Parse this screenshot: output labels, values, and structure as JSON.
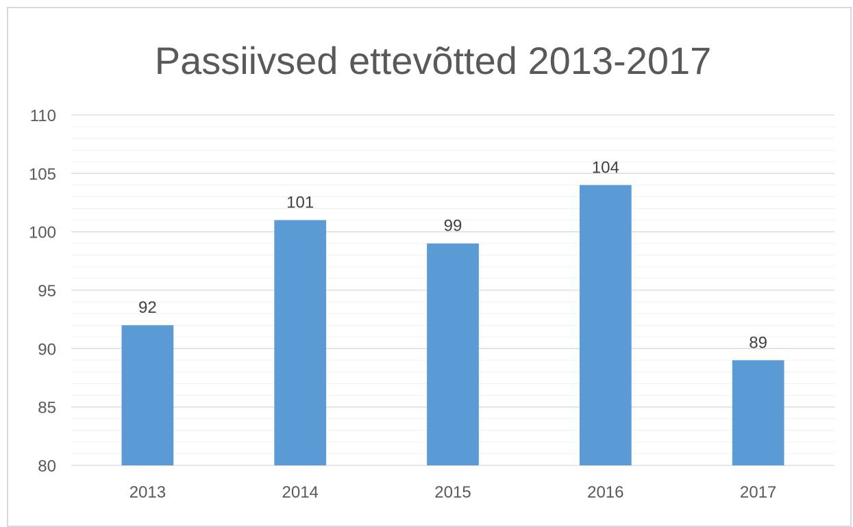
{
  "chart_data": {
    "type": "bar",
    "title": "Passiivsed ettevõtted 2013-2017",
    "xlabel": "",
    "ylabel": "",
    "categories": [
      "2013",
      "2014",
      "2015",
      "2016",
      "2017"
    ],
    "values": [
      92,
      101,
      99,
      104,
      89
    ],
    "data_labels": [
      "92",
      "101",
      "99",
      "104",
      "89"
    ],
    "ylim": [
      80,
      110
    ],
    "y_major_step": 5,
    "y_minor_step": 1,
    "y_ticks": [
      "80",
      "85",
      "90",
      "95",
      "100",
      "105",
      "110"
    ],
    "grid": true,
    "legend": "none",
    "colors": {
      "bar": "#5b9bd5",
      "grid": "#d9d9d9",
      "text": "#595959"
    }
  }
}
